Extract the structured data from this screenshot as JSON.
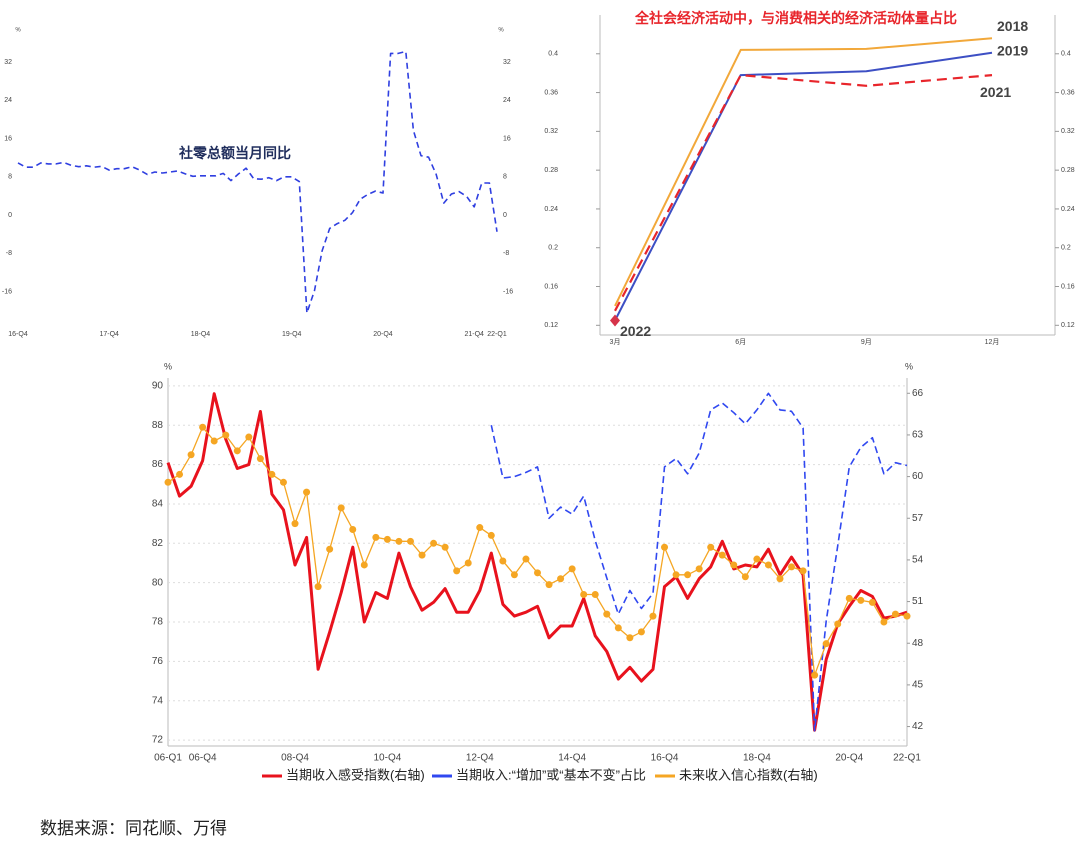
{
  "chart_data": [
    {
      "type": "line",
      "annotation": "社零总额当月同比",
      "annotation_color": "#1f2d5c",
      "y_unit": "%",
      "mirror_y": true,
      "categories": [
        "16-Q4",
        null,
        null,
        null,
        null,
        null,
        null,
        null,
        null,
        null,
        null,
        null,
        "17-Q4",
        null,
        null,
        null,
        null,
        null,
        null,
        null,
        null,
        null,
        null,
        null,
        "18-Q4",
        null,
        null,
        null,
        null,
        null,
        null,
        null,
        null,
        null,
        null,
        null,
        "19-Q4",
        null,
        null,
        null,
        null,
        null,
        null,
        null,
        null,
        null,
        null,
        null,
        "20-Q4",
        null,
        null,
        null,
        null,
        null,
        null,
        null,
        null,
        null,
        null,
        null,
        "21-Q4",
        null,
        null,
        "22-Q1"
      ],
      "series": [
        {
          "color": "#2f3fe0",
          "line_style": "dashed",
          "values": [
            10.9,
            10.0,
            10.0,
            10.9,
            10.7,
            10.7,
            11.0,
            10.4,
            10.1,
            10.3,
            10.0,
            10.2,
            9.4,
            9.7,
            9.7,
            10.1,
            9.4,
            8.5,
            9.0,
            8.8,
            9.0,
            9.2,
            8.6,
            8.1,
            8.2,
            8.2,
            8.2,
            8.7,
            7.2,
            8.6,
            9.8,
            7.6,
            7.5,
            7.8,
            7.2,
            8.0,
            8.0,
            7.0,
            -20.5,
            -15.8,
            -7.5,
            -2.8,
            -1.8,
            -1.1,
            0.5,
            3.3,
            4.3,
            5.0,
            4.6,
            33.8,
            33.8,
            34.2,
            17.7,
            12.4,
            12.1,
            8.5,
            2.5,
            4.4,
            4.9,
            3.9,
            1.7,
            6.7,
            6.7,
            -3.5
          ]
        }
      ],
      "ylim": [
        -23,
        38.7
      ],
      "yticks": [
        -16,
        -8,
        0,
        8,
        16,
        24,
        32
      ],
      "grid": false
    },
    {
      "type": "line",
      "title": "全社会经济活动中，与消费相关的经济活动体量占比",
      "title_color": "#e8252b",
      "mirror_y": true,
      "series_labels": "end",
      "categories": [
        "3月",
        "6月",
        "9月",
        "12月"
      ],
      "series": [
        {
          "name": "2018",
          "color": "#f2a83a",
          "line_style": "solid",
          "values": [
            0.14,
            0.404,
            0.405,
            0.416
          ]
        },
        {
          "name": "2019",
          "color": "#3d4fc4",
          "line_style": "solid",
          "values": [
            0.125,
            0.378,
            0.382,
            0.401
          ]
        },
        {
          "name": "2021",
          "color": "#e8252b",
          "line_style": "dashed",
          "values": [
            0.135,
            0.378,
            0.367,
            0.378
          ]
        },
        {
          "name": "2022",
          "color": "#d6334a",
          "line_style": "none",
          "marker": "diamond",
          "values": [
            0.125,
            null,
            null,
            null
          ]
        }
      ],
      "ylim": [
        0.11,
        0.44
      ],
      "yticks": [
        0.12,
        0.16,
        0.2,
        0.24,
        0.28,
        0.32,
        0.36,
        0.4
      ],
      "grid": false
    },
    {
      "type": "line",
      "y_unit": "%",
      "y2_unit": "%",
      "legend": "bottom",
      "categories": [
        "06-Q1",
        null,
        null,
        "06-Q4",
        null,
        null,
        null,
        null,
        null,
        null,
        null,
        "08-Q4",
        null,
        null,
        null,
        null,
        null,
        null,
        null,
        "10-Q4",
        null,
        null,
        null,
        null,
        null,
        null,
        null,
        "12-Q4",
        null,
        null,
        null,
        null,
        null,
        null,
        null,
        "14-Q4",
        null,
        null,
        null,
        null,
        null,
        null,
        null,
        "16-Q4",
        null,
        null,
        null,
        null,
        null,
        null,
        null,
        "18-Q4",
        null,
        null,
        null,
        null,
        null,
        null,
        null,
        "20-Q4",
        null,
        null,
        null,
        null,
        "22-Q1"
      ],
      "series": [
        {
          "name": "当期收入感受指数(右轴)",
          "color": "#e8121d",
          "line_style": "solid",
          "values": [
            86.1,
            84.4,
            84.9,
            86.2,
            89.6,
            87.3,
            85.8,
            86.0,
            88.7,
            84.5,
            83.7,
            80.9,
            82.3,
            75.6,
            77.5,
            79.5,
            81.8,
            78.0,
            79.5,
            79.2,
            81.5,
            79.8,
            78.6,
            79.0,
            79.7,
            78.5,
            78.5,
            79.6,
            81.5,
            78.9,
            78.3,
            78.5,
            78.8,
            77.2,
            77.8,
            77.8,
            79.2,
            77.3,
            76.5,
            75.1,
            75.7,
            75.0,
            75.6,
            79.8,
            80.3,
            79.2,
            80.2,
            80.8,
            82.1,
            80.7,
            80.9,
            80.8,
            81.7,
            80.4,
            81.3,
            80.4,
            72.5,
            76.1,
            77.9,
            78.8,
            79.6,
            79.3,
            78.2,
            78.3,
            78.5
          ]
        },
        {
          "name": "当期收入:“增加”或“基本不变”占比",
          "color": "#3048f0",
          "line_style": "dashed",
          "axis": "y2",
          "values": [
            null,
            null,
            null,
            null,
            null,
            null,
            null,
            null,
            null,
            null,
            null,
            null,
            null,
            null,
            null,
            null,
            null,
            null,
            null,
            null,
            null,
            null,
            null,
            null,
            null,
            null,
            null,
            null,
            63.7,
            59.9,
            60.0,
            60.3,
            60.7,
            57.0,
            57.8,
            57.3,
            58.6,
            55.4,
            52.7,
            50.1,
            51.8,
            50.5,
            51.6,
            60.7,
            61.3,
            60.2,
            61.7,
            64.8,
            65.3,
            64.6,
            63.8,
            64.8,
            66.0,
            64.8,
            64.7,
            63.5,
            41.7,
            49.6,
            55.0,
            60.7,
            62.1,
            62.8,
            60.2,
            61.0,
            60.8
          ]
        },
        {
          "name": "未来收入信心指数(右轴)",
          "color": "#f5a623",
          "line_style": "solid",
          "marker": "circle",
          "values": [
            85.1,
            85.5,
            86.5,
            87.9,
            87.2,
            87.5,
            86.7,
            87.4,
            86.3,
            85.5,
            85.1,
            83.0,
            84.6,
            79.8,
            81.7,
            83.8,
            82.7,
            80.9,
            82.3,
            82.2,
            82.1,
            82.1,
            81.4,
            82.0,
            81.8,
            80.6,
            81.0,
            82.8,
            82.4,
            81.1,
            80.4,
            81.2,
            80.5,
            79.9,
            80.2,
            80.7,
            79.4,
            79.4,
            78.4,
            77.7,
            77.2,
            77.5,
            78.3,
            81.8,
            80.4,
            80.4,
            80.7,
            81.8,
            81.4,
            80.9,
            80.3,
            81.2,
            80.9,
            80.2,
            80.8,
            80.6,
            75.3,
            76.9,
            77.9,
            79.2,
            79.1,
            79.0,
            78.0,
            78.4,
            78.3
          ]
        }
      ],
      "ylim": [
        71.7,
        90.4
      ],
      "yticks": [
        72,
        74,
        76,
        78,
        80,
        82,
        84,
        86,
        88,
        90
      ],
      "y2lim": [
        40.6,
        67.1
      ],
      "y2ticks": [
        42,
        45,
        48,
        51,
        54,
        57,
        60,
        63,
        66
      ],
      "grid": true
    }
  ],
  "source": "数据来源：同花顺、万得"
}
